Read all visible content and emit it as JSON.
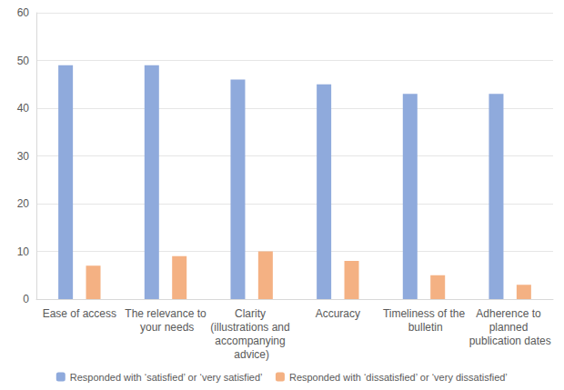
{
  "chart_data": {
    "type": "bar",
    "categories": [
      "Ease of access",
      "The relevance to your needs",
      "Clarity (illustrations and accompanying advice)",
      "Accuracy",
      "Timeliness of the bulletin",
      "Adherence to planned publication dates"
    ],
    "series": [
      {
        "name": "Responded with ‘satisfied’ or ‘very satisfied’",
        "color": "#8faadc",
        "values": [
          49,
          49,
          46,
          45,
          43,
          43
        ]
      },
      {
        "name": "Responded with ‘dissatisfied’ or ‘very dissatisfied’",
        "color": "#f4b183",
        "values": [
          7,
          9,
          10,
          8,
          5,
          3
        ]
      }
    ],
    "ylim": [
      0,
      60
    ],
    "yticks": [
      0,
      10,
      20,
      30,
      40,
      50,
      60
    ],
    "grid": true,
    "legend": "bottom"
  }
}
